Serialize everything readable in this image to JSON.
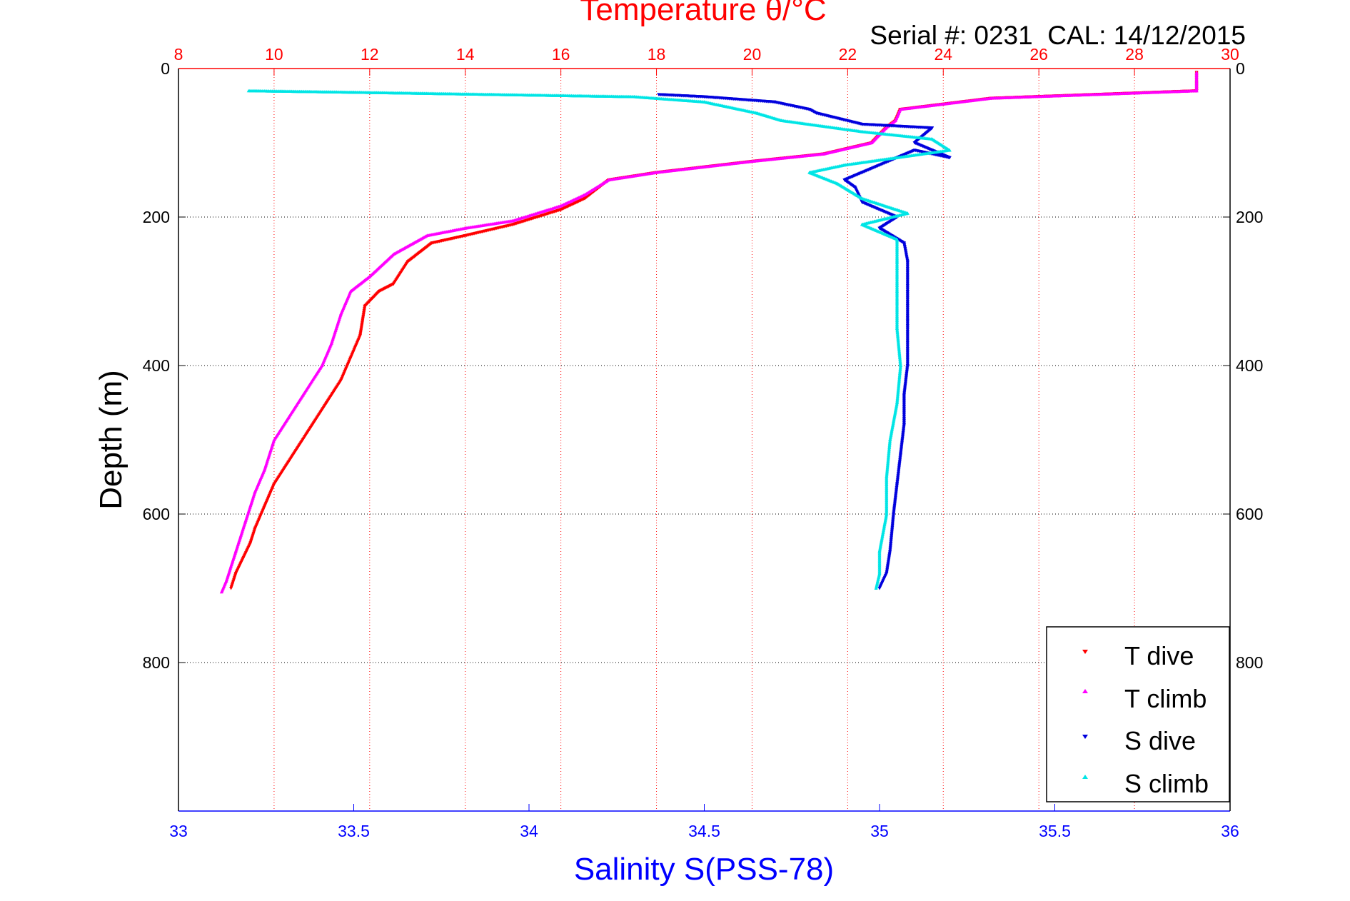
{
  "chart_data": {
    "type": "scatter",
    "title": "Temperature θ/°C",
    "subtitle": "Serial #: 0231  CAL: 14/12/2015",
    "xlabel": "Salinity S(PSS-78)",
    "ylabel": "Depth (m)",
    "x_salinity": {
      "lim": [
        33,
        36
      ],
      "ticks": [
        33,
        33.5,
        34,
        34.5,
        35,
        35.5,
        36
      ],
      "tick_labels": [
        "33",
        "33.5",
        "34",
        "34.5",
        "35",
        "35.5",
        "36"
      ]
    },
    "x_temperature": {
      "lim": [
        8,
        30
      ],
      "ticks": [
        8,
        10,
        12,
        14,
        16,
        18,
        20,
        22,
        24,
        26,
        28,
        30
      ],
      "tick_labels": [
        "8",
        "10",
        "12",
        "14",
        "16",
        "18",
        "20",
        "22",
        "24",
        "26",
        "28",
        "30"
      ]
    },
    "y": {
      "lim": [
        0,
        1000
      ],
      "reversed": true,
      "ticks": [
        0,
        200,
        400,
        600,
        800
      ],
      "tick_labels": [
        "0",
        "200",
        "400",
        "600",
        "800"
      ]
    },
    "grid": true,
    "legend_position": "bottom-right",
    "series": [
      {
        "name": "T dive",
        "axis": "temperature",
        "marker": "down-triangle",
        "color": "#ff0000",
        "points": [
          [
            29.3,
            5
          ],
          [
            29.3,
            20
          ],
          [
            29.3,
            30
          ],
          [
            25,
            40
          ],
          [
            23.1,
            55
          ],
          [
            23,
            70
          ],
          [
            22.8,
            80
          ],
          [
            22.5,
            100
          ],
          [
            21.5,
            115
          ],
          [
            20,
            125
          ],
          [
            18,
            140
          ],
          [
            17,
            150
          ],
          [
            16.5,
            175
          ],
          [
            16,
            190
          ],
          [
            15,
            210
          ],
          [
            14,
            225
          ],
          [
            13.3,
            235
          ],
          [
            12.8,
            260
          ],
          [
            12.5,
            290
          ],
          [
            12.2,
            300
          ],
          [
            11.9,
            320
          ],
          [
            11.8,
            360
          ],
          [
            11.6,
            390
          ],
          [
            11.4,
            420
          ],
          [
            11.1,
            450
          ],
          [
            10.7,
            490
          ],
          [
            10.3,
            530
          ],
          [
            10,
            560
          ],
          [
            9.8,
            590
          ],
          [
            9.6,
            620
          ],
          [
            9.5,
            640
          ],
          [
            9.35,
            660
          ],
          [
            9.2,
            680
          ],
          [
            9.1,
            700
          ]
        ]
      },
      {
        "name": "T climb",
        "axis": "temperature",
        "marker": "up-triangle",
        "color": "#ff00ff",
        "points": [
          [
            29.3,
            5
          ],
          [
            29.3,
            20
          ],
          [
            29.3,
            30
          ],
          [
            25,
            40
          ],
          [
            23.1,
            55
          ],
          [
            23,
            70
          ],
          [
            22.8,
            80
          ],
          [
            22.5,
            100
          ],
          [
            21.5,
            115
          ],
          [
            20,
            125
          ],
          [
            18,
            140
          ],
          [
            17,
            150
          ],
          [
            16.5,
            170
          ],
          [
            16,
            185
          ],
          [
            15,
            205
          ],
          [
            14,
            215
          ],
          [
            13.2,
            225
          ],
          [
            12.5,
            250
          ],
          [
            12,
            280
          ],
          [
            11.6,
            300
          ],
          [
            11.4,
            330
          ],
          [
            11.2,
            370
          ],
          [
            11,
            400
          ],
          [
            10.6,
            440
          ],
          [
            10.3,
            470
          ],
          [
            10,
            500
          ],
          [
            9.8,
            540
          ],
          [
            9.6,
            570
          ],
          [
            9.4,
            610
          ],
          [
            9.2,
            650
          ],
          [
            9,
            690
          ],
          [
            8.9,
            705
          ]
        ]
      },
      {
        "name": "S dive",
        "axis": "salinity",
        "marker": "down-triangle",
        "color": "#0000dd",
        "points": [
          [
            34.37,
            35
          ],
          [
            34.5,
            38
          ],
          [
            34.7,
            45
          ],
          [
            34.8,
            55
          ],
          [
            34.82,
            60
          ],
          [
            34.95,
            75
          ],
          [
            35.15,
            80
          ],
          [
            35.1,
            100
          ],
          [
            35.2,
            120
          ],
          [
            35.1,
            110
          ],
          [
            34.95,
            140
          ],
          [
            34.9,
            150
          ],
          [
            34.93,
            160
          ],
          [
            34.95,
            180
          ],
          [
            35.05,
            200
          ],
          [
            35.0,
            215
          ],
          [
            35.07,
            235
          ],
          [
            35.08,
            260
          ],
          [
            35.08,
            300
          ],
          [
            35.08,
            340
          ],
          [
            35.08,
            400
          ],
          [
            35.07,
            440
          ],
          [
            35.07,
            480
          ],
          [
            35.06,
            520
          ],
          [
            35.05,
            560
          ],
          [
            35.04,
            600
          ],
          [
            35.03,
            650
          ],
          [
            35.02,
            680
          ],
          [
            35.0,
            700
          ]
        ]
      },
      {
        "name": "S climb",
        "axis": "salinity",
        "marker": "up-triangle",
        "color": "#00e5e5",
        "points": [
          [
            33.2,
            30
          ],
          [
            33.5,
            32
          ],
          [
            33.9,
            35
          ],
          [
            34.3,
            38
          ],
          [
            34.5,
            45
          ],
          [
            34.65,
            60
          ],
          [
            34.72,
            70
          ],
          [
            34.95,
            85
          ],
          [
            35.15,
            95
          ],
          [
            35.2,
            110
          ],
          [
            34.9,
            130
          ],
          [
            34.8,
            140
          ],
          [
            34.88,
            155
          ],
          [
            34.95,
            175
          ],
          [
            35.08,
            195
          ],
          [
            34.95,
            210
          ],
          [
            35.05,
            230
          ],
          [
            35.05,
            260
          ],
          [
            35.05,
            300
          ],
          [
            35.05,
            350
          ],
          [
            35.06,
            400
          ],
          [
            35.05,
            450
          ],
          [
            35.03,
            500
          ],
          [
            35.02,
            550
          ],
          [
            35.02,
            600
          ],
          [
            35.0,
            650
          ],
          [
            35.0,
            680
          ],
          [
            34.99,
            700
          ]
        ]
      }
    ]
  }
}
